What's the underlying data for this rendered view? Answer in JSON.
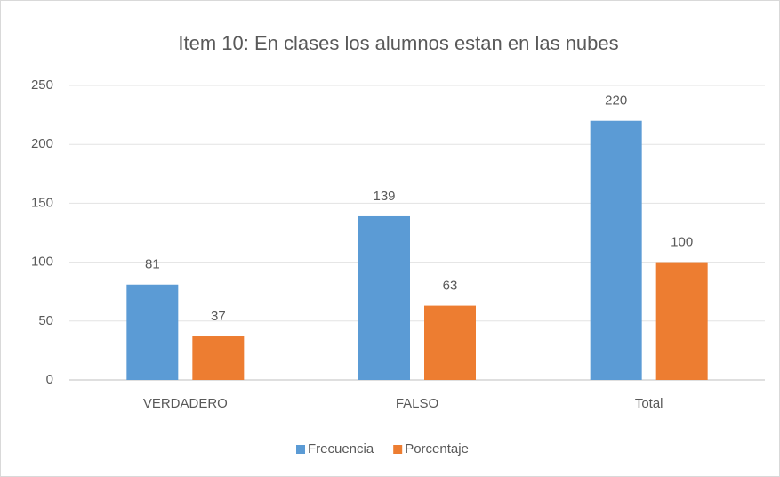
{
  "chart_data": {
    "type": "bar",
    "title": "Item 10: En clases los alumnos estan en las nubes",
    "categories": [
      "VERDADERO",
      "FALSO",
      "Total"
    ],
    "series": [
      {
        "name": "Frecuencia",
        "color": "#5b9bd5",
        "values": [
          81,
          139,
          220
        ]
      },
      {
        "name": "Porcentaje",
        "color": "#ed7d31",
        "values": [
          37,
          63,
          100
        ]
      }
    ],
    "ylim": [
      0,
      250
    ],
    "yticks": [
      0,
      50,
      100,
      150,
      200,
      250
    ],
    "grid": true,
    "legend": "bottom"
  }
}
